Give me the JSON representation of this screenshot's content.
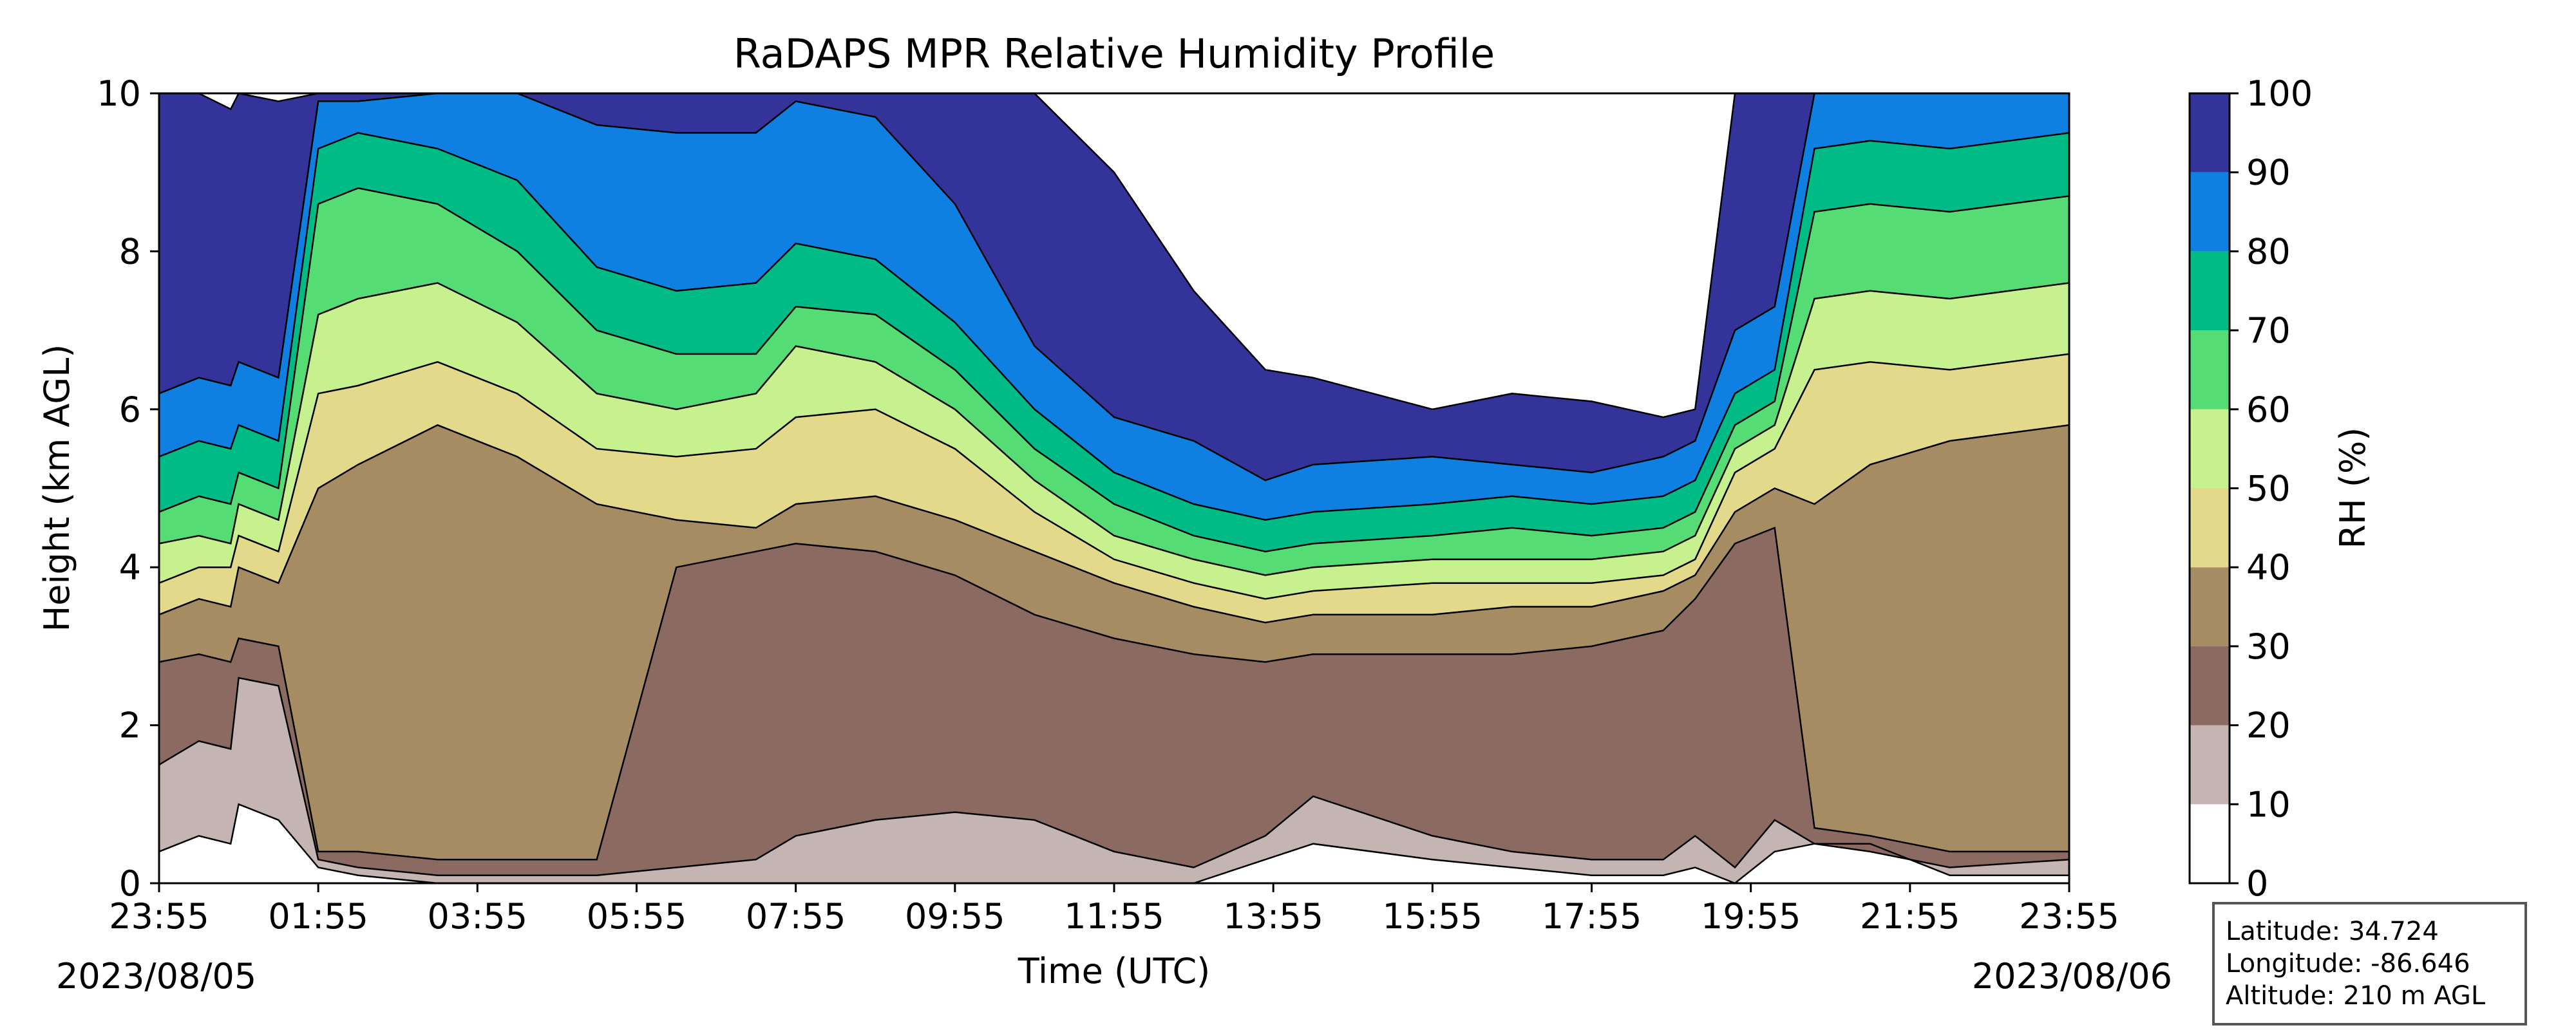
{
  "chart_data": {
    "type": "heatmap",
    "title": "RaDAPS MPR Relative Humidity Profile",
    "xlabel": "Time (UTC)",
    "ylabel": "Height (km AGL)",
    "x_ticks": [
      "23:55",
      "01:55",
      "03:55",
      "05:55",
      "07:55",
      "09:55",
      "11:55",
      "13:55",
      "15:55",
      "17:55",
      "19:55",
      "21:55",
      "23:55"
    ],
    "x_start_date": "2023/08/05",
    "x_end_date": "2023/08/06",
    "y_ticks": [
      0,
      2,
      4,
      6,
      8,
      10
    ],
    "ylim": [
      0,
      10
    ],
    "x_range_hours": [
      0,
      24
    ],
    "colorbar": {
      "label": "RH (%)",
      "levels": [
        0,
        10,
        20,
        30,
        40,
        50,
        60,
        70,
        80,
        90,
        100
      ],
      "colors": [
        "#ffffff",
        "#c4b4b2",
        "#8b6a62",
        "#a68c63",
        "#e2d98a",
        "#c6f18e",
        "#55dc74",
        "#00bb86",
        "#0f80e2",
        "#333399"
      ]
    },
    "series": [
      {
        "name": "",
        "x_hours": [
          0,
          0.5,
          0.9,
          1,
          1.5,
          2,
          2.5,
          3.5,
          4.5,
          5.5,
          6.5,
          7.5,
          8,
          9,
          10,
          11,
          12,
          13,
          13.9,
          14.5,
          16,
          17,
          18,
          18.9,
          19.3,
          19.8,
          20.3,
          20.8,
          21.5,
          22.5,
          24
        ],
        "level_heights_km": [
          [
            0.4,
            0.6,
            0.5,
            1.0,
            0.8,
            0.2,
            0.1,
            0.0,
            0.0,
            0.0,
            0.0,
            0.0,
            0.0,
            0.0,
            0.0,
            0.0,
            0.0,
            0.0,
            0.3,
            0.5,
            0.3,
            0.2,
            0.1,
            0.1,
            0.2,
            0.0,
            0.4,
            0.5,
            0.5,
            0.1,
            0.1
          ],
          [
            1.5,
            1.8,
            1.7,
            2.6,
            2.5,
            0.3,
            0.2,
            0.1,
            0.1,
            0.1,
            0.2,
            0.3,
            0.6,
            0.8,
            0.9,
            0.8,
            0.4,
            0.2,
            0.6,
            1.1,
            0.6,
            0.4,
            0.3,
            0.3,
            0.6,
            0.2,
            0.8,
            0.5,
            0.4,
            0.2,
            0.3
          ],
          [
            2.8,
            2.9,
            2.8,
            3.1,
            3.0,
            0.4,
            0.4,
            0.3,
            0.3,
            0.3,
            4.0,
            4.2,
            4.3,
            4.2,
            3.9,
            3.4,
            3.1,
            2.9,
            2.8,
            2.9,
            2.9,
            2.9,
            3.0,
            3.2,
            3.6,
            4.3,
            4.5,
            0.7,
            0.6,
            0.4,
            0.4
          ],
          [
            3.4,
            3.6,
            3.5,
            4.0,
            3.8,
            5.0,
            5.3,
            5.8,
            5.4,
            4.8,
            4.6,
            4.5,
            4.8,
            4.9,
            4.6,
            4.2,
            3.8,
            3.5,
            3.3,
            3.4,
            3.4,
            3.5,
            3.5,
            3.7,
            3.9,
            4.7,
            5.0,
            4.8,
            5.3,
            5.6,
            5.8
          ],
          [
            3.8,
            4.0,
            4.0,
            4.4,
            4.2,
            6.2,
            6.3,
            6.6,
            6.2,
            5.5,
            5.4,
            5.5,
            5.9,
            6.0,
            5.5,
            4.7,
            4.1,
            3.8,
            3.6,
            3.7,
            3.8,
            3.8,
            3.8,
            3.9,
            4.1,
            5.2,
            5.5,
            6.5,
            6.6,
            6.5,
            6.7
          ],
          [
            4.3,
            4.4,
            4.3,
            4.8,
            4.6,
            7.2,
            7.4,
            7.6,
            7.1,
            6.2,
            6.0,
            6.2,
            6.8,
            6.6,
            6.0,
            5.1,
            4.4,
            4.1,
            3.9,
            4.0,
            4.1,
            4.1,
            4.1,
            4.2,
            4.4,
            5.5,
            5.8,
            7.4,
            7.5,
            7.4,
            7.6
          ],
          [
            4.7,
            4.9,
            4.8,
            5.2,
            5.0,
            8.6,
            8.8,
            8.6,
            8.0,
            7.0,
            6.7,
            6.7,
            7.3,
            7.2,
            6.5,
            5.5,
            4.8,
            4.4,
            4.2,
            4.3,
            4.4,
            4.5,
            4.4,
            4.5,
            4.7,
            5.8,
            6.1,
            8.5,
            8.6,
            8.5,
            8.7
          ],
          [
            5.4,
            5.6,
            5.5,
            5.8,
            5.6,
            9.3,
            9.5,
            9.3,
            8.9,
            7.8,
            7.5,
            7.6,
            8.1,
            7.9,
            7.1,
            6.0,
            5.2,
            4.8,
            4.6,
            4.7,
            4.8,
            4.9,
            4.8,
            4.9,
            5.1,
            6.2,
            6.5,
            9.3,
            9.4,
            9.3,
            9.5
          ],
          [
            6.2,
            6.4,
            6.3,
            6.6,
            6.4,
            9.9,
            9.9,
            10.0,
            10.0,
            9.6,
            9.5,
            9.5,
            9.9,
            9.7,
            8.6,
            6.8,
            5.9,
            5.6,
            5.1,
            5.3,
            5.4,
            5.3,
            5.2,
            5.4,
            5.6,
            7.0,
            7.3,
            10.0,
            10.0,
            10.0,
            10.0
          ],
          [
            10.0,
            10.0,
            9.8,
            10.0,
            9.9,
            10.0,
            10.0,
            10.0,
            10.0,
            10.0,
            10.0,
            10.0,
            10.0,
            10.0,
            10.0,
            10.0,
            9.0,
            7.5,
            6.5,
            6.4,
            6.0,
            6.2,
            6.1,
            5.9,
            6.0,
            10.0,
            10.0,
            10.0,
            10.0,
            10.0,
            10.0
          ]
        ]
      }
    ],
    "info_box": [
      "Latitude: 34.724",
      "Longitude: -86.646",
      "Altitude: 210 m AGL"
    ]
  }
}
